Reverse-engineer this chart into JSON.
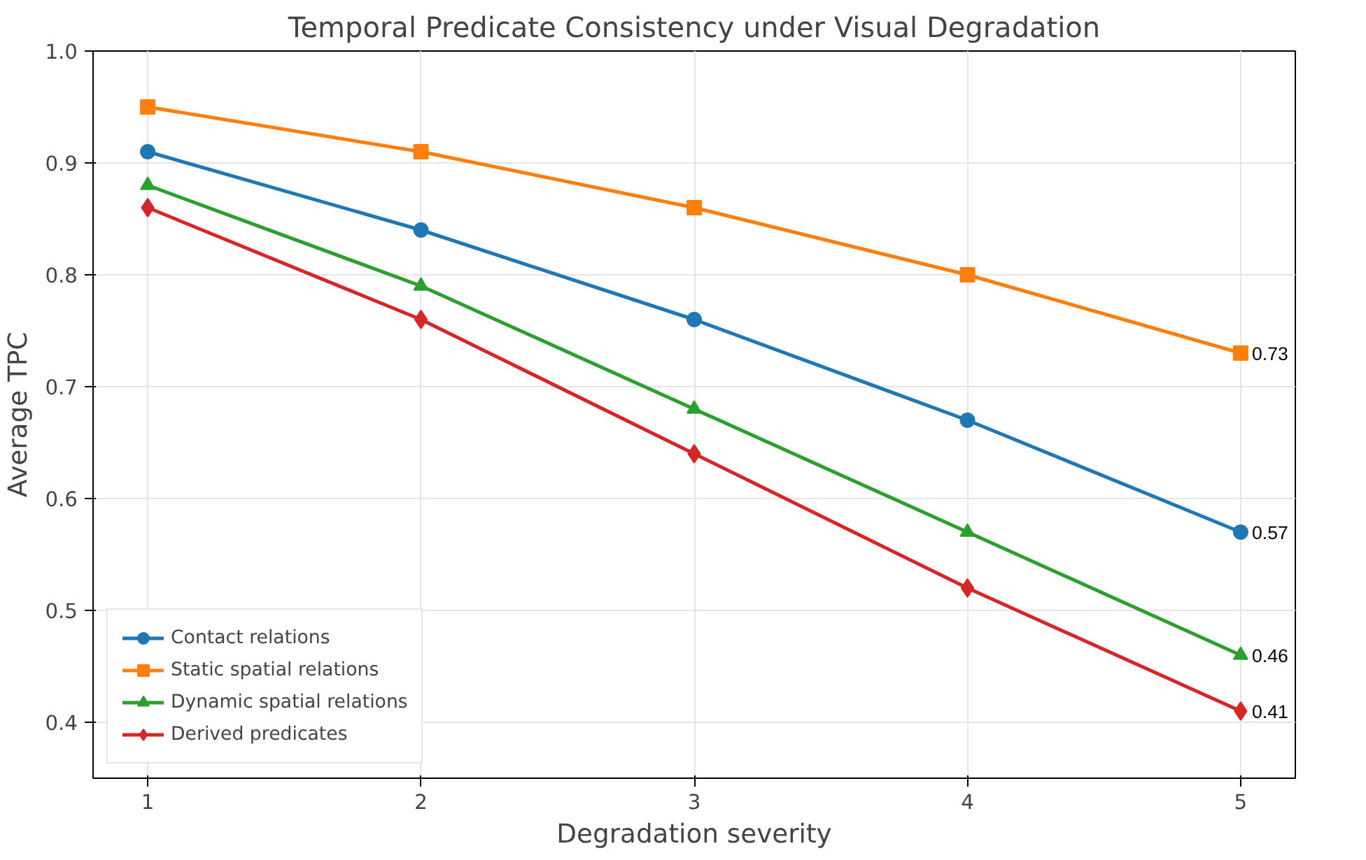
{
  "chart_data": {
    "type": "line",
    "title": "Temporal Predicate Consistency under Visual Degradation",
    "xlabel": "Degradation severity",
    "ylabel": "Average TPC",
    "x": [
      1,
      2,
      3,
      4,
      5
    ],
    "xlim": [
      0.8,
      5.2
    ],
    "xticks": [
      1,
      2,
      3,
      4,
      5
    ],
    "ylim": [
      0.35,
      1.0
    ],
    "yticks": [
      {
        "value": 0.4,
        "label": "0.4"
      },
      {
        "value": 0.5,
        "label": "0.5"
      },
      {
        "value": 0.6,
        "label": "0.6"
      },
      {
        "value": 0.7,
        "label": "0.7"
      },
      {
        "value": 0.8,
        "label": "0.8"
      },
      {
        "value": 0.9,
        "label": "0.9"
      },
      {
        "value": 1.0,
        "label": "1.0"
      }
    ],
    "grid": true,
    "legend": "bottom left",
    "line_style": "solid",
    "series": [
      {
        "name": "Contact relations",
        "color": "#1f77b4",
        "marker": "circle",
        "values": [
          0.91,
          0.84,
          0.76,
          0.67,
          0.57
        ],
        "value_labels": [
          null,
          null,
          null,
          null,
          "0.57"
        ]
      },
      {
        "name": "Static spatial relations",
        "color": "#ff7f0e",
        "marker": "square",
        "values": [
          0.95,
          0.91,
          0.86,
          0.8,
          0.73
        ],
        "value_labels": [
          null,
          null,
          null,
          null,
          "0.73"
        ]
      },
      {
        "name": "Dynamic spatial relations",
        "color": "#2ca02c",
        "marker": "triangle",
        "values": [
          0.88,
          0.79,
          0.68,
          0.57,
          0.46
        ],
        "value_labels": [
          null,
          null,
          null,
          null,
          "0.46"
        ]
      },
      {
        "name": "Derived predicates",
        "color": "#d62728",
        "marker": "diamond",
        "values": [
          0.86,
          0.76,
          0.64,
          0.52,
          0.41
        ],
        "value_labels": [
          null,
          null,
          null,
          null,
          "0.41"
        ]
      }
    ]
  }
}
